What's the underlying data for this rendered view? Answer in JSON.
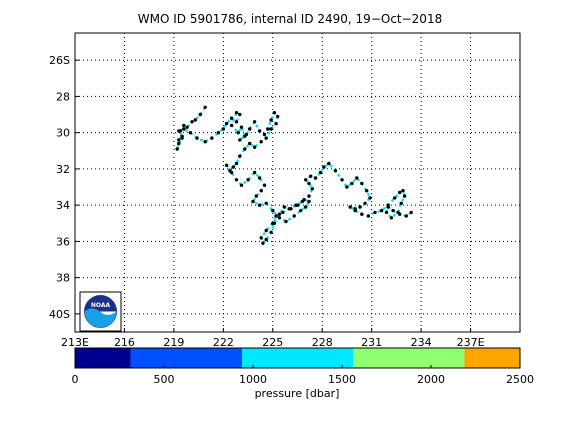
{
  "chart_data": [
    {
      "type": "line",
      "title": "WMO ID 5901786, internal ID 2490, 19−Oct−2018",
      "xlim": [
        213,
        240
      ],
      "ylim": [
        -41,
        -24.5
      ],
      "grid": true,
      "x_tick_values": [
        213,
        216,
        219,
        222,
        225,
        228,
        231,
        234,
        237
      ],
      "x_tick_labels": [
        "213E",
        "216",
        "219",
        "222",
        "225",
        "228",
        "231",
        "234",
        "237E"
      ],
      "y_tick_values": [
        -26,
        -28,
        -30,
        -32,
        -34,
        -36,
        -38,
        -40
      ],
      "y_tick_labels": [
        "26S",
        "28",
        "30",
        "32",
        "34",
        "36",
        "38",
        "40S"
      ],
      "series": [
        {
          "x": [
            220.9,
            220.6,
            220.3,
            220.1,
            219.8,
            219.6,
            219.4,
            219.5,
            219.3,
            219.2,
            219.3,
            219.5,
            219.3,
            219.6,
            220.0,
            220.4,
            220.9,
            221.3,
            221.7,
            222.0,
            222.2,
            222.5,
            222.8,
            223.0,
            222.8,
            222.5,
            222.9,
            223.1,
            223.3,
            223.0,
            223.4,
            223.6,
            223.9,
            224.2,
            224.5,
            224.7,
            224.9,
            225.1,
            225.3,
            225.2,
            224.9,
            224.6,
            224.3,
            223.9,
            223.6,
            223.3,
            223.0,
            222.8,
            222.6,
            222.4,
            222.2,
            222.5,
            222.8,
            223.1,
            223.5,
            223.9,
            224.2,
            224.5,
            224.3,
            224.0,
            223.8,
            224.2,
            224.6,
            225.0,
            225.4,
            225.8,
            226.3,
            226.7,
            227.0,
            227.2,
            226.9,
            226.5,
            226.1,
            225.7,
            225.4,
            225.1,
            224.9,
            224.6,
            224.4,
            224.3,
            224.6,
            225.0,
            225.2,
            225.6,
            226.0,
            226.4,
            226.8,
            227.2,
            227.4,
            227.2,
            227.0,
            227.3,
            227.6,
            227.9,
            228.1,
            228.4,
            228.8,
            229.2,
            229.5,
            229.8,
            230.1,
            230.4,
            230.7,
            230.9,
            230.6,
            230.3,
            230.0,
            229.7,
            230.0,
            230.4,
            230.8,
            231.2,
            231.6,
            232.0,
            232.4,
            232.7,
            232.9,
            233.0,
            232.8,
            232.6,
            232.2,
            231.9,
            232.0,
            232.3,
            232.7,
            233.1,
            233.4
          ],
          "y": [
            -28.6,
            -29.0,
            -29.3,
            -29.4,
            -29.7,
            -29.6,
            -29.9,
            -30.3,
            -30.6,
            -30.9,
            -30.4,
            -30.2,
            -29.9,
            -29.8,
            -30.0,
            -30.3,
            -30.5,
            -30.3,
            -30.0,
            -29.8,
            -29.5,
            -29.2,
            -29.4,
            -29.0,
            -28.9,
            -29.6,
            -30.0,
            -29.7,
            -30.2,
            -30.4,
            -30.1,
            -29.8,
            -29.4,
            -29.9,
            -30.1,
            -29.8,
            -29.3,
            -28.9,
            -29.1,
            -29.5,
            -29.8,
            -30.3,
            -30.5,
            -30.8,
            -30.6,
            -30.9,
            -31.3,
            -31.7,
            -31.9,
            -32.1,
            -31.8,
            -32.2,
            -32.6,
            -32.9,
            -32.6,
            -32.2,
            -32.5,
            -32.9,
            -33.2,
            -33.5,
            -33.8,
            -34.0,
            -33.9,
            -34.3,
            -34.7,
            -34.9,
            -34.6,
            -34.3,
            -34.1,
            -33.8,
            -33.7,
            -34.0,
            -34.2,
            -34.1,
            -34.5,
            -35.0,
            -35.5,
            -35.9,
            -36.1,
            -35.8,
            -35.4,
            -35.0,
            -34.6,
            -34.4,
            -34.2,
            -34.0,
            -33.8,
            -33.5,
            -33.1,
            -32.8,
            -32.6,
            -32.4,
            -32.5,
            -32.2,
            -31.9,
            -31.7,
            -32.1,
            -32.6,
            -33.0,
            -32.8,
            -32.5,
            -32.8,
            -33.2,
            -33.6,
            -33.9,
            -34.1,
            -34.2,
            -34.1,
            -34.3,
            -34.5,
            -34.6,
            -34.4,
            -34.3,
            -34.0,
            -33.6,
            -33.3,
            -33.2,
            -33.5,
            -33.9,
            -34.4,
            -34.7,
            -34.4,
            -34.1,
            -34.3,
            -34.5,
            -34.6,
            -34.4
          ]
        }
      ],
      "series_style": {
        "line_color": "#00E5FF",
        "dot_color": "#000000",
        "line_style": "dashed"
      },
      "colorbar": {
        "label": "pressure [dbar]",
        "range": [
          0,
          2500
        ],
        "tick_labels": [
          "0",
          "500",
          "1000",
          "1500",
          "2000",
          "2500"
        ],
        "tick_values": [
          0,
          500,
          1000,
          1500,
          2000,
          2500
        ],
        "segments": [
          {
            "from": 0,
            "to": 312,
            "color": "#00008F"
          },
          {
            "from": 312,
            "to": 938,
            "color": "#0050FF"
          },
          {
            "from": 938,
            "to": 1562,
            "color": "#00E8FF"
          },
          {
            "from": 1562,
            "to": 2188,
            "color": "#90FF70"
          },
          {
            "from": 2188,
            "to": 2500,
            "color": "#FFA500"
          }
        ]
      }
    }
  ],
  "logo": {
    "text": "NOAA"
  }
}
